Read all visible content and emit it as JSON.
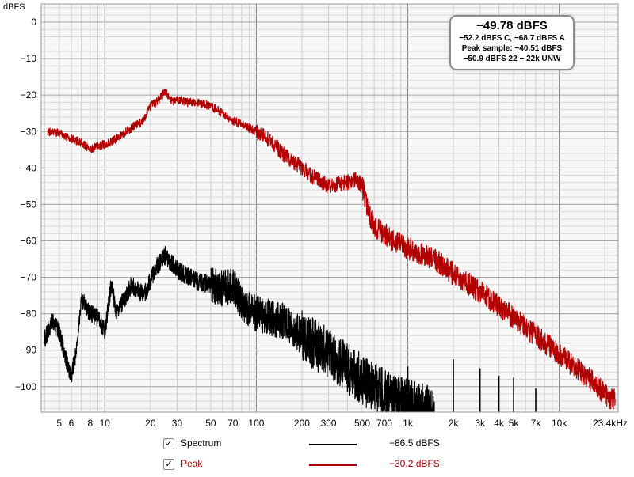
{
  "chart_data": {
    "type": "line",
    "ylabel": "dBFS",
    "x_scale": "log",
    "xlim": [
      3.8,
      24500
    ],
    "ylim": [
      -107,
      5
    ],
    "x_ticks": [
      5,
      6,
      8,
      10,
      20,
      30,
      50,
      70,
      100,
      200,
      300,
      500,
      700,
      1000,
      2000,
      3000,
      4000,
      5000,
      7000,
      10000,
      23400
    ],
    "x_tick_labels": [
      "5",
      "6",
      "8",
      "10",
      "20",
      "30",
      "50",
      "70",
      "100",
      "200",
      "300",
      "500",
      "700",
      "1k",
      "2k",
      "3k",
      "4k",
      "5k",
      "7k",
      "10k",
      "23.4kHz"
    ],
    "y_ticks": [
      0,
      -10,
      -20,
      -30,
      -40,
      -50,
      -60,
      -70,
      -80,
      -90,
      -100
    ],
    "y_tick_labels": [
      "0",
      "-10",
      "-20",
      "-30",
      "-40",
      "-50",
      "-60",
      "-70",
      "-80",
      "-90",
      "-100"
    ],
    "grid": true,
    "series": [
      {
        "name": "Peak",
        "color": "#b30000",
        "x": [
          4.2,
          5,
          6,
          7,
          8,
          9,
          10,
          12,
          15,
          18,
          20,
          22,
          25,
          28,
          30,
          35,
          40,
          50,
          60,
          70,
          80,
          100,
          120,
          150,
          200,
          250,
          300,
          400,
          450,
          500,
          550,
          600,
          700,
          800,
          1000,
          1500,
          2000,
          3000,
          4000,
          5000,
          7000,
          10000,
          15000,
          20000,
          23400
        ],
        "y": [
          -30,
          -30.5,
          -32,
          -33,
          -35,
          -34,
          -33.5,
          -32,
          -29,
          -27,
          -23,
          -22,
          -19,
          -22,
          -21,
          -22,
          -22,
          -23,
          -25,
          -27,
          -28,
          -30,
          -32,
          -36,
          -40,
          -43,
          -45,
          -44,
          -43,
          -45,
          -52,
          -56,
          -58,
          -60,
          -62,
          -65,
          -69,
          -74,
          -78,
          -81,
          -86,
          -91,
          -97,
          -102,
          -104
        ]
      },
      {
        "name": "Spectrum",
        "color": "#000000",
        "x": [
          4,
          4.5,
          5,
          5.5,
          6,
          6.5,
          7,
          8,
          9,
          10,
          11,
          12,
          15,
          18,
          20,
          22,
          25,
          30,
          40,
          50,
          60,
          70,
          80,
          100,
          150,
          200,
          300,
          400,
          500,
          700,
          1000,
          1500
        ],
        "y": [
          -87,
          -82,
          -85,
          -92,
          -97,
          -90,
          -76,
          -80,
          -81,
          -85,
          -72,
          -80,
          -72,
          -75,
          -71,
          -67,
          -64,
          -68,
          -71,
          -72,
          -73,
          -72,
          -77,
          -80,
          -82,
          -86,
          -91,
          -95,
          -98,
          -102,
          -105,
          -107
        ]
      }
    ],
    "spikes": [
      {
        "x": 1000,
        "y": -94.5
      },
      {
        "x": 2000,
        "y": -92.5
      },
      {
        "x": 3000,
        "y": -95
      },
      {
        "x": 4000,
        "y": -97
      },
      {
        "x": 5000,
        "y": -97.5
      },
      {
        "x": 7000,
        "y": -100.5
      }
    ],
    "legend": [
      {
        "name": "Spectrum",
        "value": "-86.5 dBFS",
        "color": "#000000",
        "text_color": "#000000",
        "checked": true
      },
      {
        "name": "Peak",
        "value": "-30.2 dBFS",
        "color": "#b30000",
        "text_color": "#b30000",
        "checked": true
      }
    ],
    "legend_position": "bottom",
    "info": {
      "main": "-49.78 dBFS",
      "line1": "-52.2 dBFS C, -68.7 dBFS A",
      "line2": "Peak sample: -40.51 dBFS",
      "line3": "-50.9 dBFS 22 - 22k UNW"
    }
  }
}
